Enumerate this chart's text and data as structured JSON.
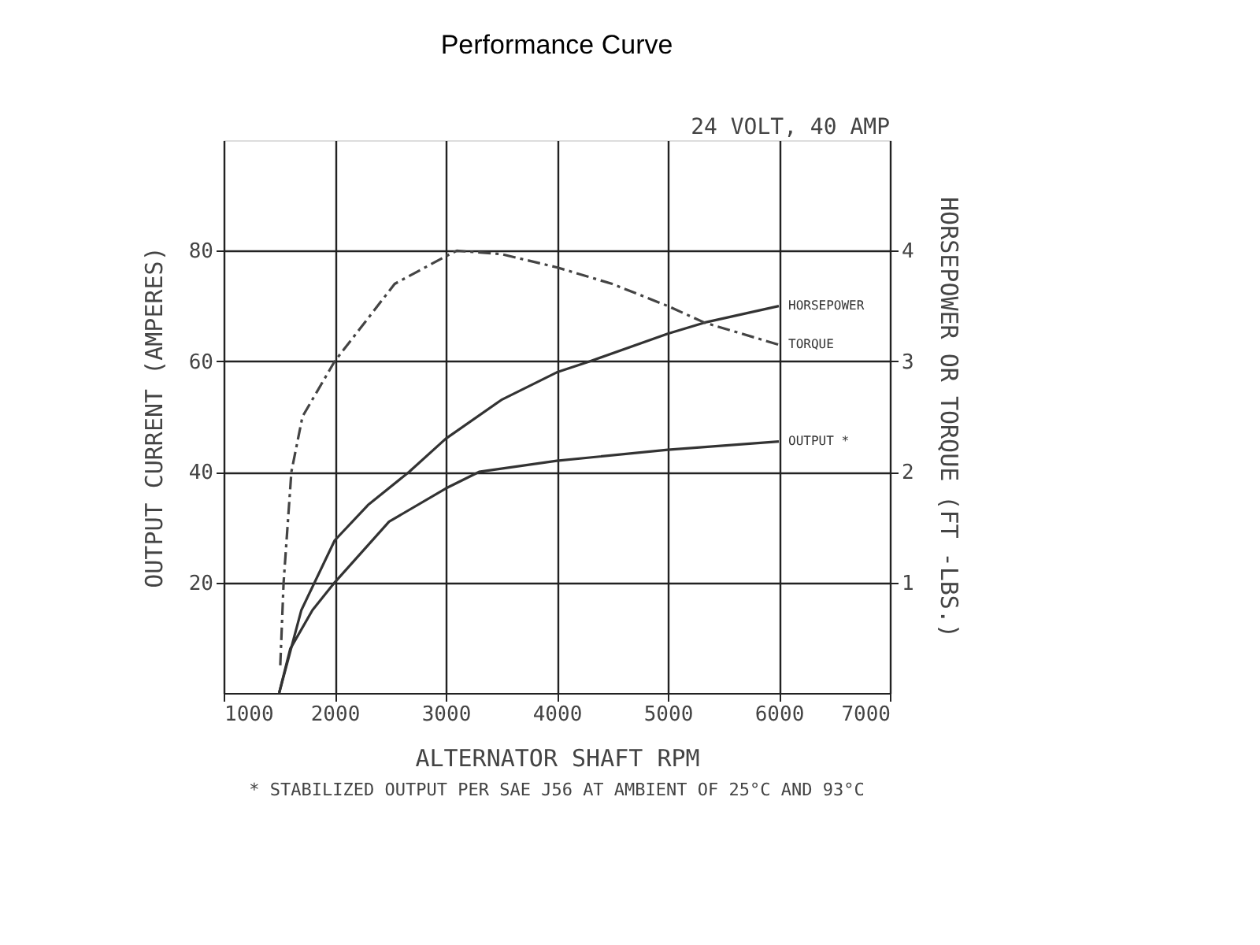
{
  "chart_data": {
    "type": "line",
    "title": "Performance Curve",
    "xlabel": "ALTERNATOR SHAFT RPM",
    "ylabel": "OUTPUT CURRENT (AMPERES)",
    "y2label": "HORSEPOWER OR TORQUE (FT -LBS.)",
    "annotations": [
      "24 VOLT, 40 AMP",
      "* STABILIZED OUTPUT PER SAE J56 AT AMBIENT OF 25°C AND 93°C"
    ],
    "xlim": [
      1000,
      7000
    ],
    "xticks": [
      1000,
      2000,
      3000,
      4000,
      5000,
      6000,
      7000
    ],
    "ylim": [
      0,
      100
    ],
    "yticks": [
      20,
      40,
      60,
      80
    ],
    "y2lim": [
      0,
      5
    ],
    "y2ticks": [
      1,
      2,
      3,
      4
    ],
    "grid": true,
    "legend": false,
    "marker": "none",
    "series": [
      {
        "name": "HORSEPOWER",
        "color": "#333333",
        "axis": "y2",
        "line_style": "solid",
        "x": [
          1500,
          1700,
          2000,
          2300,
          2670,
          3000,
          3500,
          4000,
          4300,
          5000,
          5330,
          6000
        ],
        "values": [
          0,
          0.75,
          1.38,
          1.7,
          2.0,
          2.3,
          2.65,
          2.9,
          3.0,
          3.25,
          3.35,
          3.5
        ]
      },
      {
        "name": "TORQUE",
        "color": "#444444",
        "axis": "y2",
        "line_style": "dashed",
        "x": [
          1510,
          1540,
          1610,
          1710,
          2000,
          2540,
          3000,
          3100,
          3500,
          4000,
          4500,
          5000,
          5330,
          6000
        ],
        "values": [
          0.25,
          1.0,
          2.0,
          2.5,
          3.0,
          3.7,
          3.95,
          4.0,
          3.97,
          3.85,
          3.7,
          3.5,
          3.35,
          3.15
        ]
      },
      {
        "name": "OUTPUT *",
        "color": "#333333",
        "axis": "y",
        "line_style": "solid",
        "x": [
          1500,
          1600,
          1800,
          2000,
          2490,
          3000,
          3300,
          4000,
          5000,
          6000
        ],
        "values": [
          0,
          8,
          15,
          20,
          31,
          37,
          40,
          42,
          44,
          45.5
        ]
      }
    ]
  }
}
